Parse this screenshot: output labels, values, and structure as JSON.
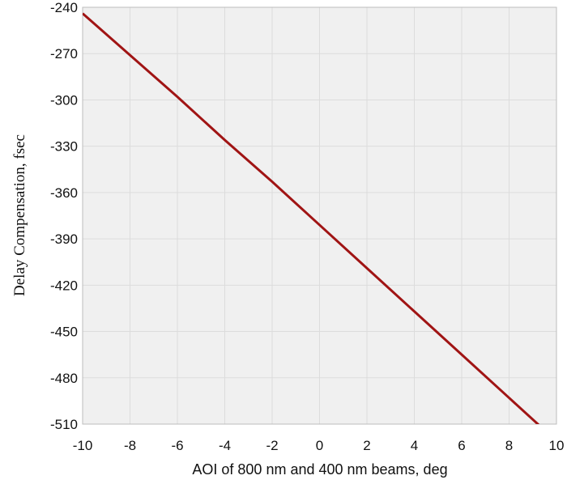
{
  "chart_data": {
    "type": "line",
    "title": "",
    "xlabel": "AOI of 800 nm and 400 nm beams, deg",
    "ylabel": "Delay Compensation, fsec",
    "xlim": [
      -10,
      10
    ],
    "ylim": [
      -510,
      -240
    ],
    "x_ticks": [
      -10,
      -8,
      -6,
      -4,
      -2,
      0,
      2,
      4,
      6,
      8,
      10
    ],
    "y_ticks": [
      -240,
      -270,
      -300,
      -330,
      -360,
      -390,
      -420,
      -450,
      -480,
      -510
    ],
    "grid": true,
    "series": [
      {
        "color": "#a01414",
        "x": [
          -10,
          -8,
          -6,
          -4,
          -2,
          0,
          2,
          4,
          6,
          8,
          10
        ],
        "y": [
          -244,
          -271,
          -298,
          -326,
          -353,
          -381,
          -409,
          -437,
          -465,
          -493,
          -521
        ]
      }
    ]
  },
  "colors": {
    "plot_background": "#f0f0f0",
    "grid": "#dcdcdc",
    "frame": "#bcbcbc",
    "line": "#a01414"
  }
}
